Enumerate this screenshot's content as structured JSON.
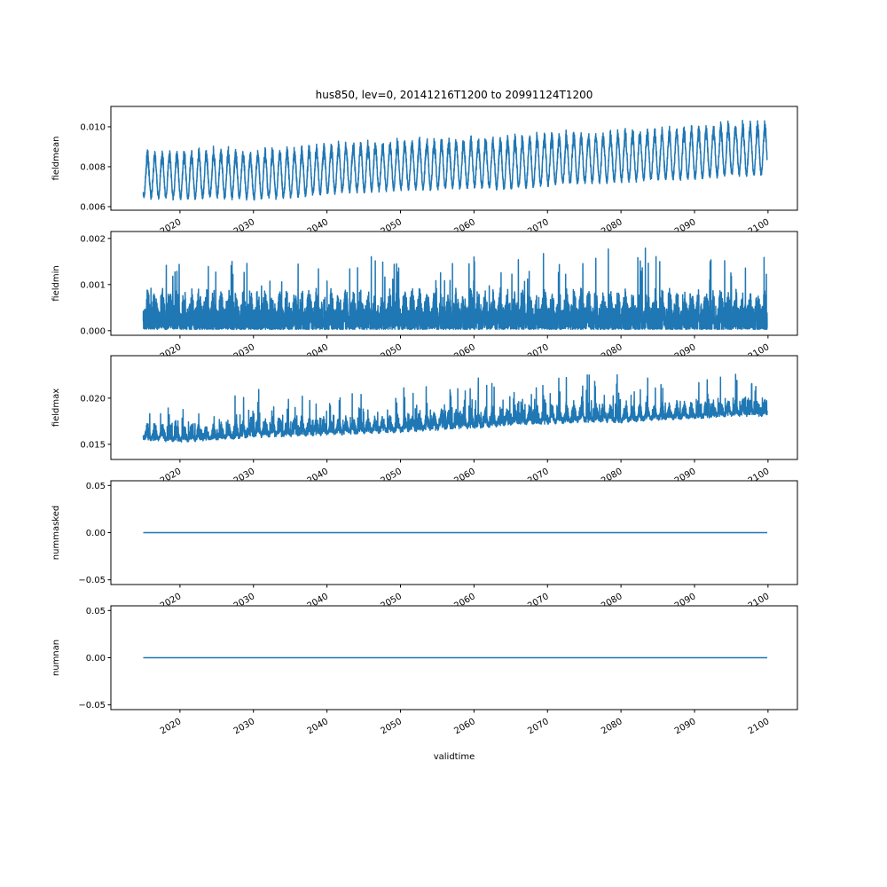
{
  "chart_data": {
    "type": "line",
    "title": "hus850, lev=0, 20141216T1200 to 20991124T1200",
    "xlabel": "validtime",
    "x_range": [
      2015.0,
      2099.9
    ],
    "xlim": [
      2010.6,
      2104.0
    ],
    "x_ticks": [
      "2020",
      "2030",
      "2040",
      "2050",
      "2060",
      "2070",
      "2080",
      "2090",
      "2100"
    ],
    "grid": false,
    "line_color": "#1f77b4",
    "bin_start_years": [
      2015,
      2020,
      2025,
      2030,
      2035,
      2040,
      2045,
      2050,
      2055,
      2060,
      2065,
      2070,
      2075,
      2080,
      2085,
      2090,
      2095
    ],
    "panels": [
      {
        "ylabel": "fieldmean",
        "ylim": [
          0.00582,
          0.01102
        ],
        "y_ticks": [
          {
            "value": 0.006,
            "label": "0.006"
          },
          {
            "value": 0.008,
            "label": "0.008"
          },
          {
            "value": 0.01,
            "label": "0.010"
          }
        ],
        "kind": "seasonal",
        "envelope_low": [
          0.0064,
          0.0063,
          0.0064,
          0.0063,
          0.0064,
          0.0066,
          0.0067,
          0.0068,
          0.0068,
          0.0069,
          0.0068,
          0.007,
          0.0071,
          0.0072,
          0.0073,
          0.0073,
          0.0075
        ],
        "envelope_high": [
          0.0089,
          0.009,
          0.0091,
          0.009,
          0.0091,
          0.0093,
          0.0094,
          0.0095,
          0.0096,
          0.0096,
          0.0097,
          0.0099,
          0.0099,
          0.01,
          0.0101,
          0.0102,
          0.0104
        ]
      },
      {
        "ylabel": "fieldmin",
        "ylim": [
          -0.0001,
          0.00215
        ],
        "y_ticks": [
          {
            "value": 0.0,
            "label": "0.000"
          },
          {
            "value": 0.001,
            "label": "0.001"
          },
          {
            "value": 0.002,
            "label": "0.002"
          }
        ],
        "kind": "spiky",
        "envelope_low": [
          3e-05,
          3e-05,
          3e-05,
          3e-05,
          3e-05,
          3e-05,
          3e-05,
          3e-05,
          3e-05,
          3e-05,
          3e-05,
          3e-05,
          3e-05,
          3e-05,
          3e-05,
          3e-05,
          3e-05
        ],
        "envelope_high": [
          0.0015,
          0.0015,
          0.0016,
          0.0015,
          0.0015,
          0.0016,
          0.002,
          0.0015,
          0.0015,
          0.0016,
          0.0015,
          0.0017,
          0.0017,
          0.0019,
          0.0018,
          0.0017,
          0.0016
        ]
      },
      {
        "ylabel": "fieldmax",
        "ylim": [
          0.01336,
          0.0246
        ],
        "y_ticks": [
          {
            "value": 0.015,
            "label": "0.015"
          },
          {
            "value": 0.02,
            "label": "0.020"
          }
        ],
        "kind": "skewed",
        "envelope_low": [
          0.015,
          0.0148,
          0.015,
          0.0152,
          0.0153,
          0.0155,
          0.0157,
          0.0158,
          0.016,
          0.0162,
          0.0165,
          0.0167,
          0.0168,
          0.0168,
          0.0172,
          0.0173,
          0.0176
        ],
        "envelope_high": [
          0.0205,
          0.02,
          0.0203,
          0.0215,
          0.0217,
          0.021,
          0.0212,
          0.0215,
          0.0222,
          0.0222,
          0.0228,
          0.0225,
          0.0235,
          0.0228,
          0.0222,
          0.0225,
          0.0228
        ]
      },
      {
        "ylabel": "nummasked",
        "ylim": [
          -0.055,
          0.055
        ],
        "y_ticks": [
          {
            "value": -0.05,
            "label": "−0.05"
          },
          {
            "value": 0.0,
            "label": "0.00"
          },
          {
            "value": 0.05,
            "label": "0.05"
          }
        ],
        "kind": "constant",
        "value": 0
      },
      {
        "ylabel": "numnan",
        "ylim": [
          -0.055,
          0.055
        ],
        "y_ticks": [
          {
            "value": -0.05,
            "label": "−0.05"
          },
          {
            "value": 0.0,
            "label": "0.00"
          },
          {
            "value": 0.05,
            "label": "0.05"
          }
        ],
        "kind": "constant",
        "value": 0
      }
    ]
  }
}
